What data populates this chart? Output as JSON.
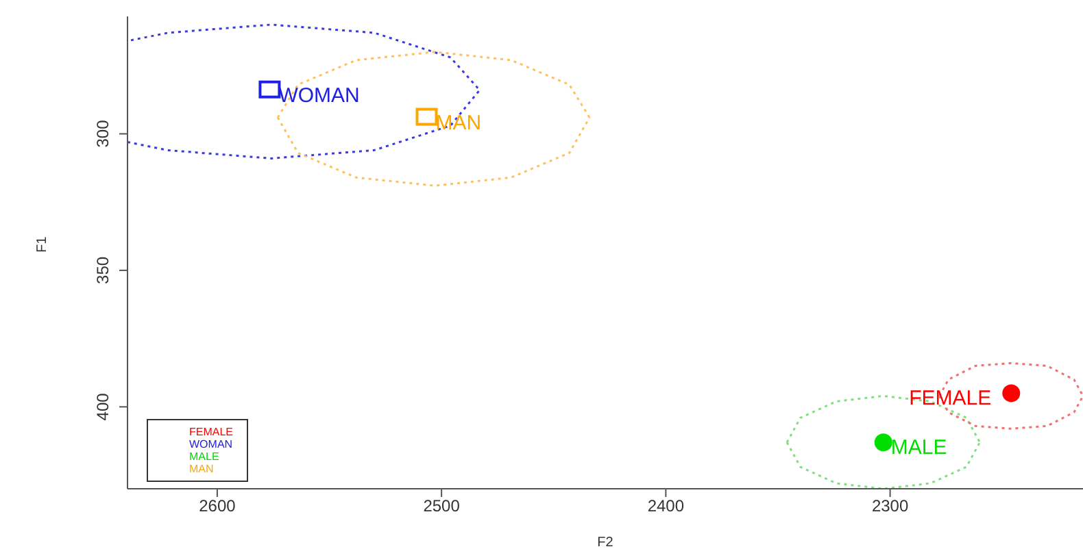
{
  "chart_data": {
    "type": "scatter",
    "xlabel": "F2",
    "ylabel": "F1",
    "xlim": [
      2640,
      2214
    ],
    "ylim": [
      430,
      257
    ],
    "xticks": [
      2600,
      2500,
      2400,
      2300
    ],
    "yticks": [
      300,
      350,
      400
    ],
    "grid": false,
    "legend": "bottom left",
    "series": [
      {
        "type": "line",
        "line_style": "dotted",
        "marker": "none",
        "color": "#3a3ae0",
        "x": [
          2640,
          2622,
          2576,
          2530,
          2496,
          2483,
          2496,
          2530,
          2576,
          2622,
          2640
        ],
        "values": [
          303,
          306,
          309,
          306,
          297,
          284,
          272,
          263,
          260,
          263,
          266
        ]
      },
      {
        "type": "line",
        "line_style": "dotted",
        "marker": "none",
        "color": "#ffc060",
        "x": [
          2573,
          2564,
          2538,
          2503,
          2469,
          2443,
          2434
        ],
        "values": [
          294,
          282,
          273,
          270,
          273,
          282,
          294
        ]
      },
      {
        "type": "line",
        "line_style": "dotted",
        "marker": "none",
        "color": "#ffc060",
        "x": [
          2573,
          2564,
          2538,
          2503,
          2469,
          2443,
          2434
        ],
        "values": [
          294,
          307,
          316,
          319,
          316,
          307,
          294
        ]
      },
      {
        "type": "line",
        "line_style": "dotted",
        "marker": "none",
        "color": "#80e080",
        "x": [
          2346,
          2340,
          2324,
          2303,
          2282,
          2266,
          2260
        ],
        "values": [
          413,
          404,
          398,
          396,
          398,
          404,
          413
        ]
      },
      {
        "type": "line",
        "line_style": "dotted",
        "marker": "none",
        "color": "#80e080",
        "x": [
          2346,
          2340,
          2324,
          2303,
          2282,
          2266,
          2260
        ],
        "values": [
          413,
          422,
          428,
          430,
          428,
          422,
          413
        ]
      },
      {
        "type": "line",
        "line_style": "dotted",
        "marker": "none",
        "color": "#f07070",
        "x": [
          2278,
          2274,
          2262,
          2246,
          2230,
          2218,
          2214
        ],
        "values": [
          396,
          390,
          385,
          384,
          385,
          390,
          396
        ]
      },
      {
        "type": "line",
        "line_style": "dotted",
        "marker": "none",
        "color": "#f07070",
        "x": [
          2278,
          2274,
          2262,
          2246,
          2230,
          2218,
          2214
        ],
        "values": [
          396,
          402,
          407,
          408,
          407,
          402,
          396
        ]
      },
      {
        "name": "FEMALE",
        "type": "scatter",
        "marker": "circle",
        "color": "#ff0000",
        "x": [
          2246
        ],
        "values": [
          395
        ]
      },
      {
        "name": "WOMAN",
        "type": "scatter",
        "marker": "square",
        "color": "#2020e0",
        "x": [
          2576
        ],
        "values": [
          284
        ]
      },
      {
        "name": "MALE",
        "type": "scatter",
        "marker": "circle",
        "color": "#00dd00",
        "x": [
          2303
        ],
        "values": [
          413
        ]
      },
      {
        "name": "MAN",
        "type": "scatter",
        "marker": "square",
        "color": "#ffa500",
        "x": [
          2506
        ],
        "values": [
          294
        ]
      }
    ]
  }
}
